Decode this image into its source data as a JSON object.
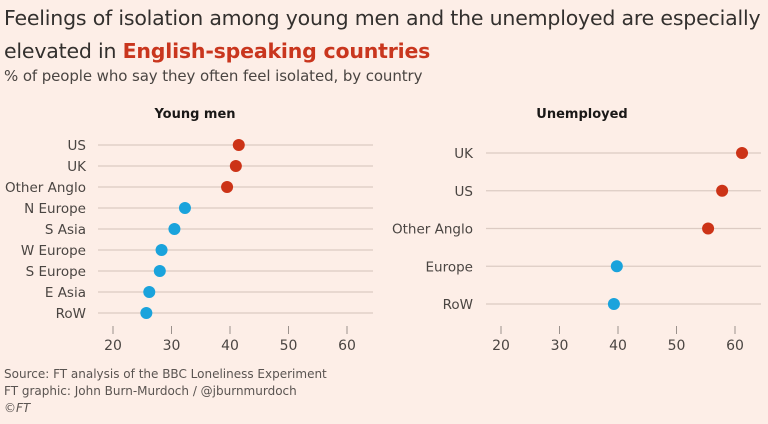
{
  "title": {
    "line1": "Feelings of isolation among young men and the unemployed are especially",
    "line2_prefix": "elevated in ",
    "line2_highlight": "English-speaking countries"
  },
  "subtitle": "% of people who say they often feel isolated, by country",
  "colors": {
    "background": "#fdeee7",
    "highlight": "#c9361e",
    "anglo_dot": "#cc3317",
    "other_dot": "#1aa3dc"
  },
  "chart_data": [
    {
      "type": "scatter",
      "title": "Young men",
      "xlabel": "",
      "ylabel": "",
      "xlim": [
        17,
        65
      ],
      "xticks": [
        20,
        30,
        40,
        50,
        60
      ],
      "grid": true,
      "categories": [
        "US",
        "UK",
        "Other Anglo",
        "N Europe",
        "S Asia",
        "W Europe",
        "S Europe",
        "E Asia",
        "RoW"
      ],
      "values": [
        41.5,
        41.0,
        39.5,
        32.3,
        30.5,
        28.3,
        28.0,
        26.2,
        25.7
      ],
      "groups": [
        "anglo",
        "anglo",
        "anglo",
        "other",
        "other",
        "other",
        "other",
        "other",
        "other"
      ]
    },
    {
      "type": "scatter",
      "title": "Unemployed",
      "xlabel": "",
      "ylabel": "",
      "xlim": [
        17,
        65
      ],
      "xticks": [
        20,
        30,
        40,
        50,
        60
      ],
      "grid": true,
      "categories": [
        "UK",
        "US",
        "Other Anglo",
        "Europe",
        "RoW"
      ],
      "values": [
        61.2,
        57.8,
        55.4,
        39.8,
        39.3
      ],
      "groups": [
        "anglo",
        "anglo",
        "anglo",
        "other",
        "other"
      ]
    }
  ],
  "footer": {
    "source": "Source: FT analysis of the BBC Loneliness Experiment",
    "credit": "FT graphic: John Burn-Murdoch / @jburnmurdoch",
    "copyright": "©FT"
  }
}
